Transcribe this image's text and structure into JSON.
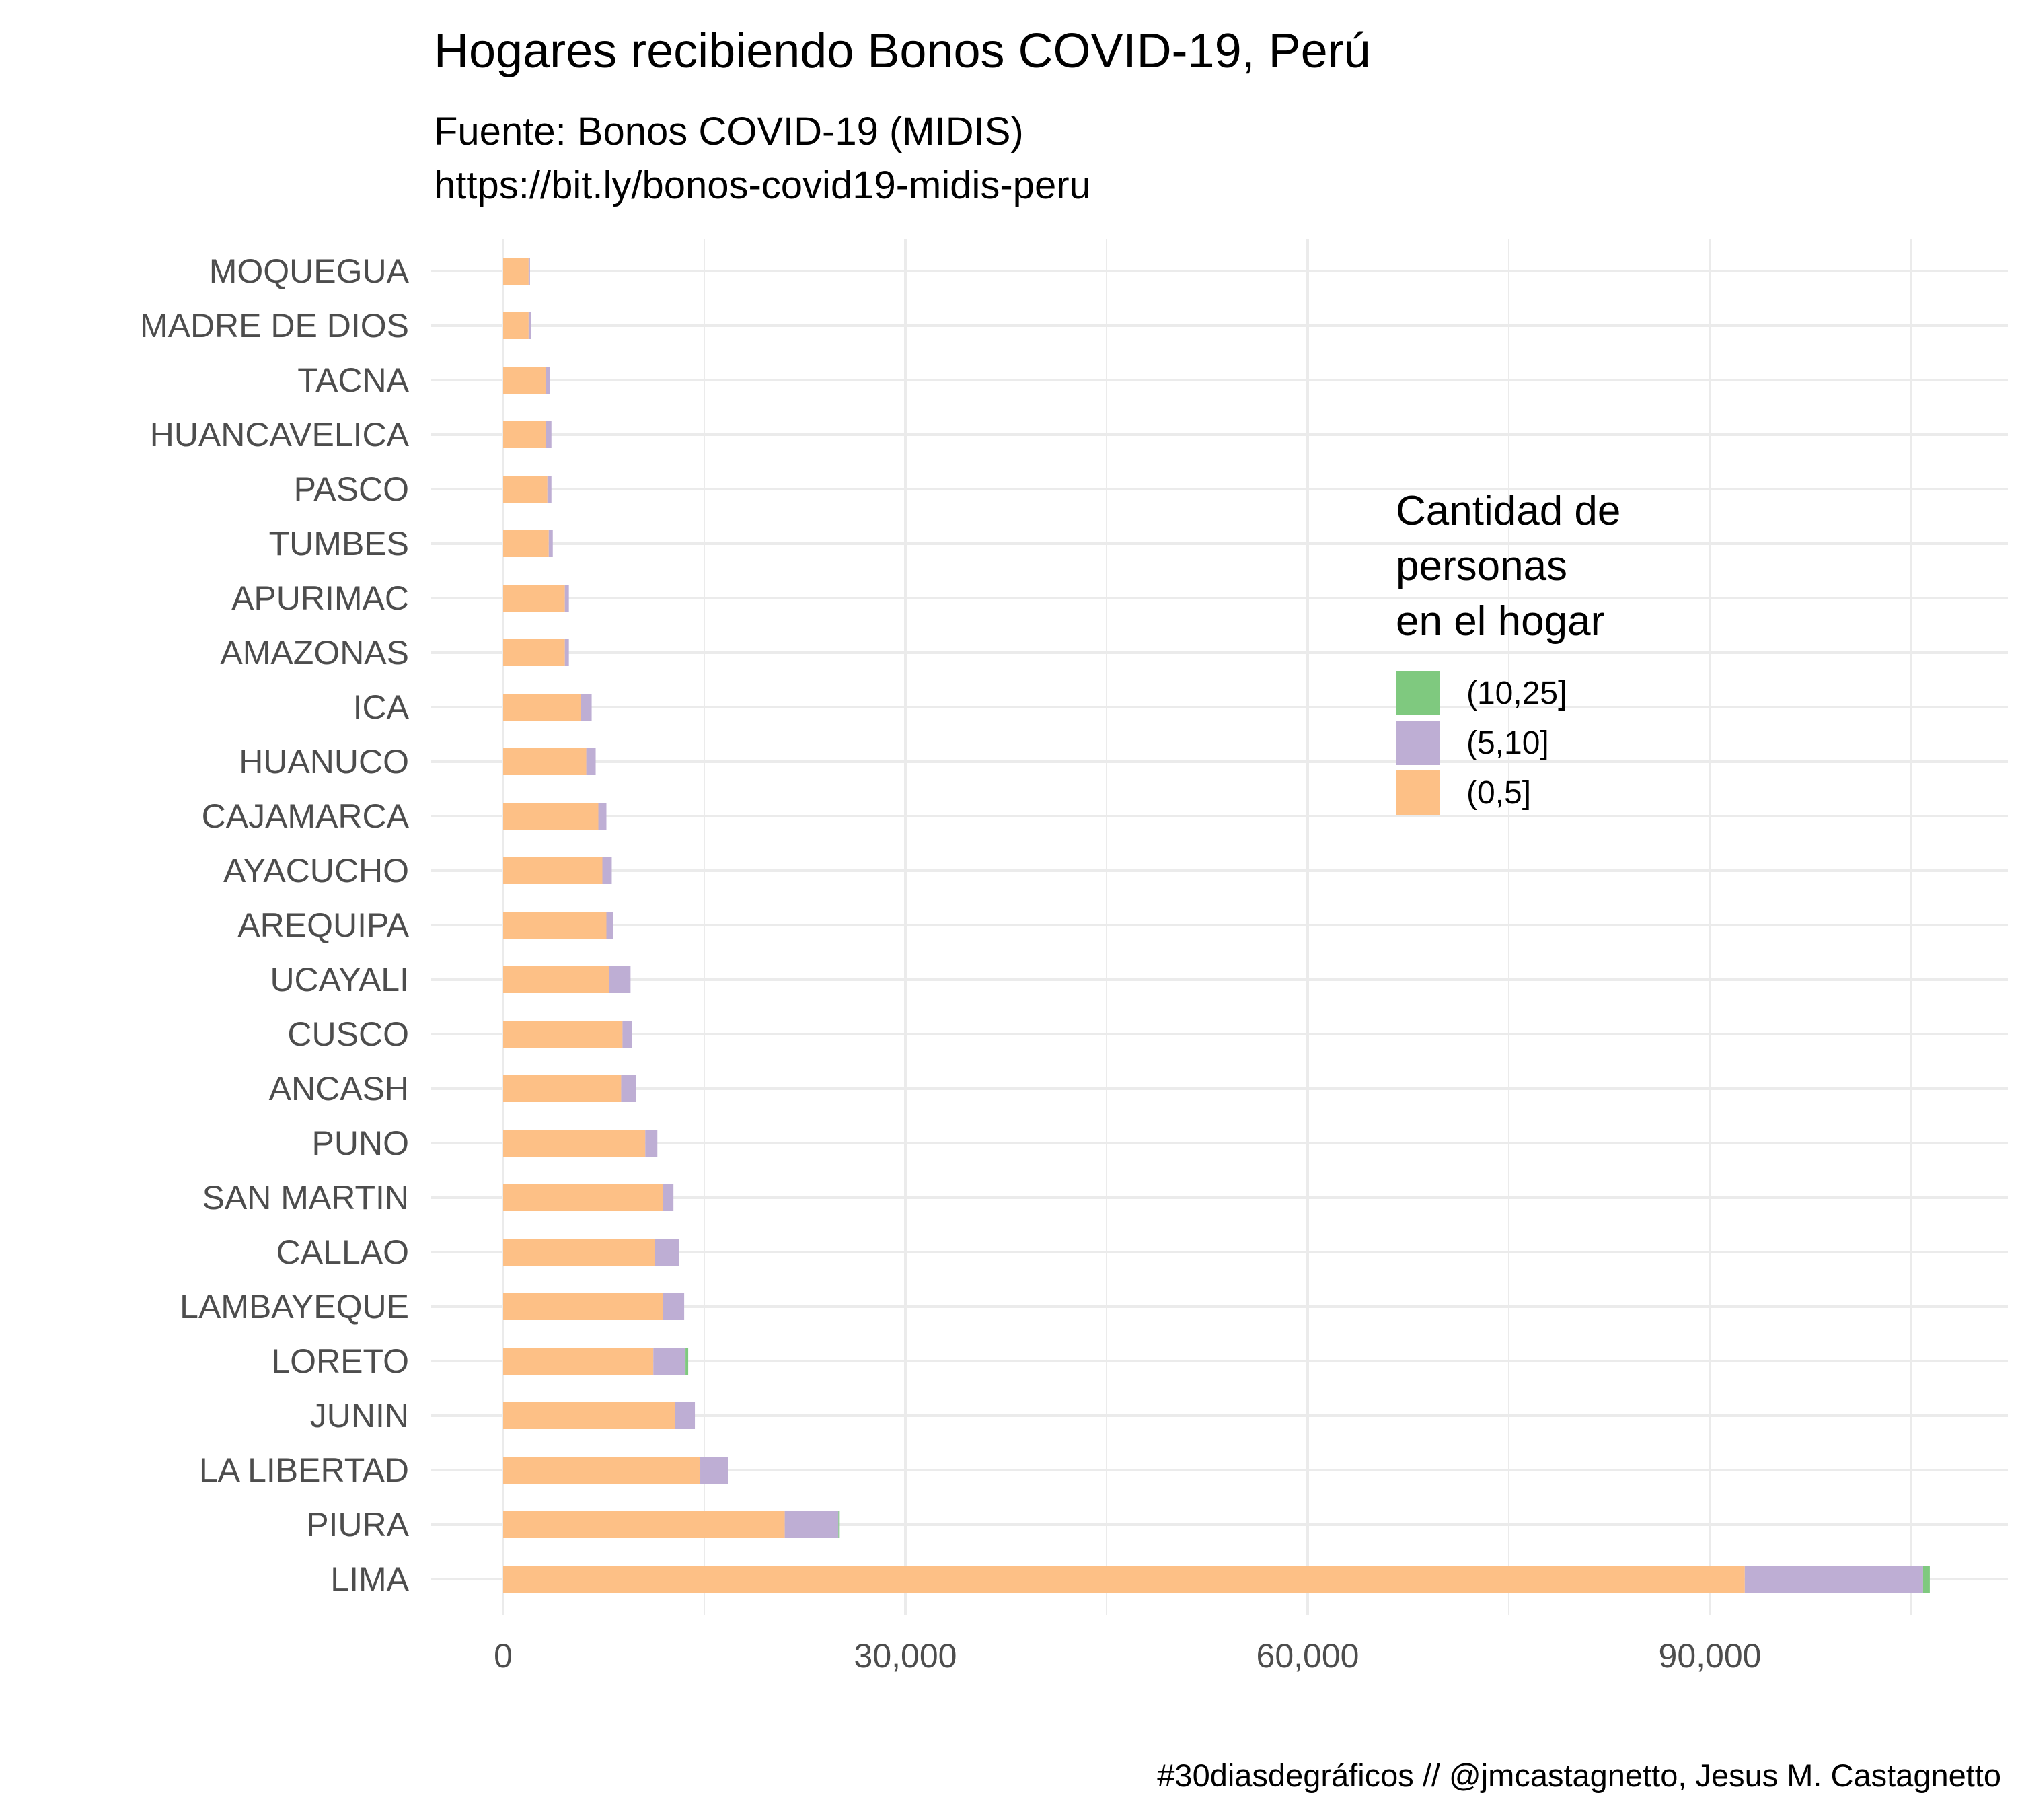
{
  "chart_data": {
    "type": "bar",
    "orientation": "horizontal",
    "stacked": true,
    "title": "Hogares recibiendo Bonos COVID-19, Perú",
    "subtitle": [
      "Fuente: Bonos COVID-19 (MIDIS)",
      "https://bit.ly/bonos-covid19-midis-peru"
    ],
    "caption": "#30diasdegráficos // @jmcastagnetto, Jesus M. Castagnetto",
    "xlabel": "",
    "ylabel": "",
    "xlim": [
      -3000,
      111500
    ],
    "xticks": [
      0,
      30000,
      60000,
      90000
    ],
    "xtick_labels": [
      "0",
      "30,000",
      "60,000",
      "90,000"
    ],
    "grid": true,
    "legend": {
      "title": [
        "Cantidad de",
        "personas",
        "en el hogar"
      ],
      "placement": "right-inside",
      "entries": [
        {
          "label": "(10,25]",
          "color": "#7fc97f"
        },
        {
          "label": "(5,10]",
          "color": "#beaed4"
        },
        {
          "label": "(0,5]",
          "color": "#fdc086"
        }
      ]
    },
    "categories": [
      "MOQUEGUA",
      "MADRE DE DIOS",
      "TACNA",
      "HUANCAVELICA",
      "PASCO",
      "TUMBES",
      "APURIMAC",
      "AMAZONAS",
      "ICA",
      "HUANUCO",
      "CAJAMARCA",
      "AYACUCHO",
      "AREQUIPA",
      "UCAYALI",
      "CUSCO",
      "ANCASH",
      "PUNO",
      "SAN MARTIN",
      "CALLAO",
      "LAMBAYEQUE",
      "LORETO",
      "JUNIN",
      "LA LIBERTAD",
      "PIURA",
      "LIMA"
    ],
    "series": [
      {
        "name": "(0,5]",
        "color": "#fdc086",
        "values": [
          1900,
          1900,
          3200,
          3200,
          3300,
          3400,
          4600,
          4600,
          5800,
          6200,
          7100,
          7400,
          7700,
          7900,
          8900,
          8800,
          10600,
          11900,
          11300,
          11900,
          11200,
          12800,
          14700,
          21000,
          92600
        ]
      },
      {
        "name": "(5,10]",
        "color": "#beaed4",
        "values": [
          100,
          200,
          300,
          400,
          300,
          300,
          300,
          300,
          800,
          700,
          600,
          700,
          500,
          1600,
          700,
          1100,
          900,
          800,
          1800,
          1600,
          2400,
          1500,
          2100,
          4000,
          13300
        ]
      },
      {
        "name": "(10,25]",
        "color": "#7fc97f",
        "values": [
          0,
          0,
          0,
          0,
          0,
          0,
          0,
          0,
          0,
          0,
          0,
          0,
          0,
          0,
          0,
          0,
          0,
          0,
          0,
          0,
          200,
          0,
          0,
          100,
          500
        ]
      }
    ]
  }
}
